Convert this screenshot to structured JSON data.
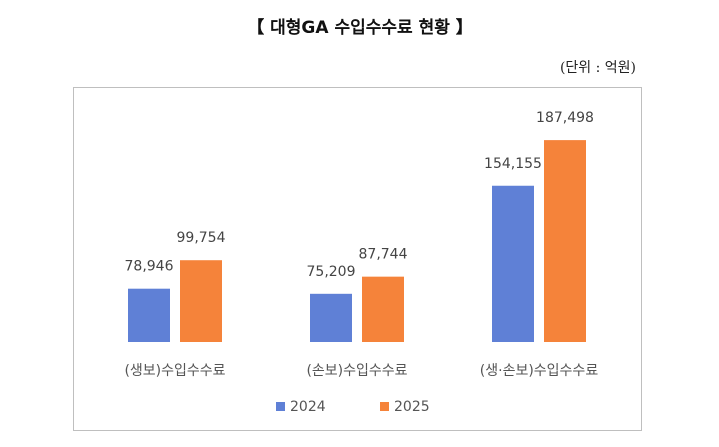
{
  "chart_data": {
    "type": "bar",
    "title": "【 대형GA 수입수수료 현황 】",
    "unit": "(단위 : 억원)",
    "categories": [
      "(생보)수입수수료",
      "(손보)수입수수료",
      "(생·손보)수입수수료"
    ],
    "series": [
      {
        "name": "2024",
        "color": "#5f80d6",
        "values": [
          78946,
          75209,
          154155
        ],
        "value_labels": [
          "78,946",
          "75,209",
          "154,155"
        ]
      },
      {
        "name": "2025",
        "color": "#f5833a",
        "values": [
          99754,
          87744,
          187498
        ],
        "value_labels": [
          "99,754",
          "87,744",
          "187,498"
        ]
      }
    ],
    "ylim": [
      40000,
      200000
    ]
  }
}
